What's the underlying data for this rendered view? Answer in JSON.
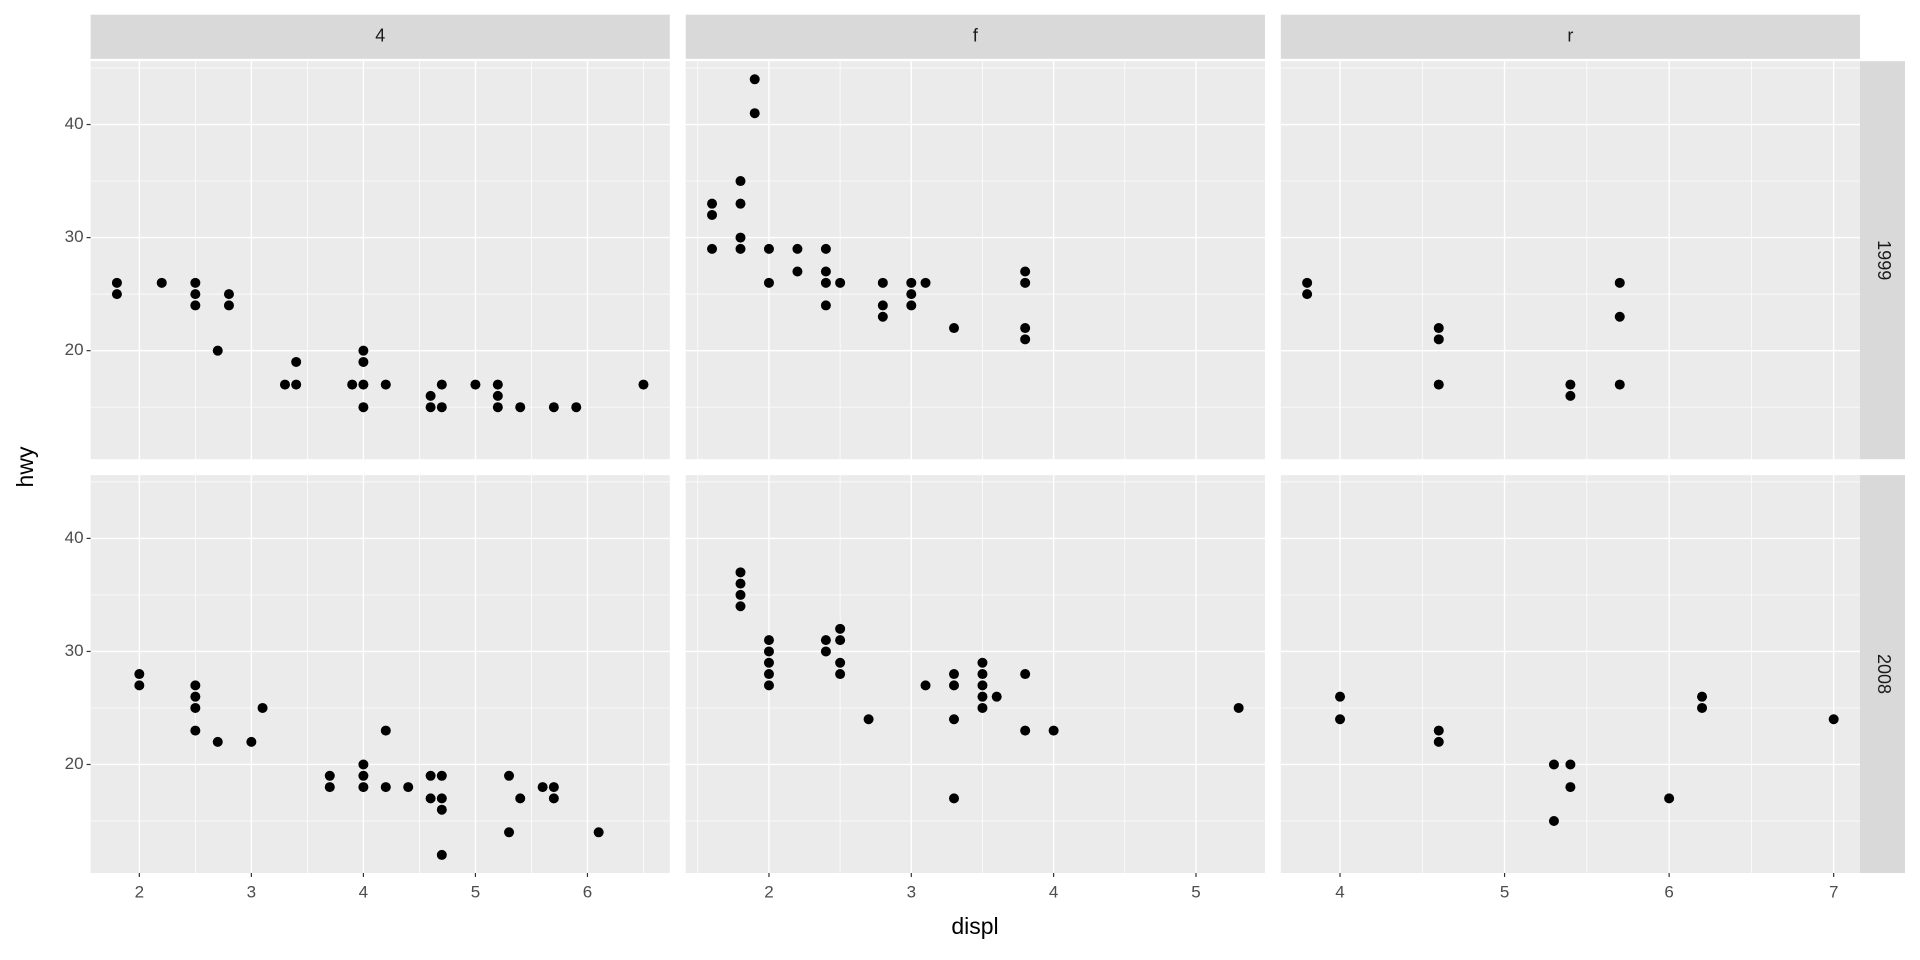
{
  "chart_data": {
    "type": "scatter",
    "x_label": "displ",
    "y_label": "hwy",
    "color": "#000000",
    "grid": true,
    "ylim": [
      10.4,
      45.6
    ],
    "yticks": [
      20,
      30,
      40
    ],
    "columns": [
      {
        "label": "4",
        "xlim": [
          1.565,
          6.735
        ],
        "xticks": [
          2,
          3,
          4,
          5,
          6
        ]
      },
      {
        "label": "f",
        "xlim": [
          1.415,
          5.485
        ],
        "xticks": [
          2,
          3,
          4,
          5
        ]
      },
      {
        "label": "r",
        "xlim": [
          3.64,
          7.16
        ],
        "xticks": [
          4,
          5,
          6,
          7
        ]
      }
    ],
    "rows": [
      "1999",
      "2008"
    ],
    "panels": [
      {
        "x": [
          1.8,
          1.8,
          2.2,
          2.5,
          2.5,
          2.5,
          2.8,
          2.8,
          2.7,
          3.3,
          3.4,
          3.4,
          3.9,
          4,
          4,
          4,
          4,
          4.2,
          4.6,
          4.6,
          4.7,
          4.7,
          5,
          5.2,
          5.2,
          5.2,
          5.4,
          5.7,
          5.9,
          6.5
        ],
        "y": [
          26,
          25,
          26,
          26,
          25,
          24,
          25,
          24,
          20,
          17,
          17,
          19,
          17,
          20,
          19,
          17,
          15,
          17,
          16,
          15,
          17,
          15,
          17,
          17,
          16,
          15,
          15,
          15,
          15,
          17
        ]
      },
      {
        "x": [
          1.6,
          1.6,
          1.6,
          1.8,
          1.8,
          1.8,
          1.8,
          1.9,
          1.9,
          2,
          2,
          2.2,
          2.2,
          2.4,
          2.4,
          2.4,
          2.4,
          2.5,
          2.8,
          2.8,
          2.8,
          3,
          3,
          3,
          3.1,
          3.3,
          3.8,
          3.8,
          3.8,
          3.8
        ],
        "y": [
          33,
          32,
          29,
          35,
          33,
          30,
          29,
          44,
          41,
          29,
          26,
          29,
          27,
          29,
          27,
          26,
          24,
          26,
          26,
          24,
          23,
          26,
          25,
          24,
          26,
          22,
          27,
          26,
          22,
          21
        ]
      },
      {
        "x": [
          3.8,
          3.8,
          4.6,
          4.6,
          4.6,
          5.4,
          5.4,
          5.7,
          5.7,
          5.7
        ],
        "y": [
          26,
          25,
          22,
          21,
          17,
          17,
          16,
          26,
          23,
          17
        ]
      },
      {
        "x": [
          2,
          2,
          2.5,
          2.5,
          2.5,
          2.5,
          2.7,
          3,
          3.1,
          3.7,
          3.7,
          4,
          4,
          4,
          4.2,
          4.2,
          4.4,
          4.6,
          4.6,
          4.7,
          4.7,
          4.7,
          4.7,
          5.3,
          5.3,
          5.4,
          5.6,
          5.7,
          5.7,
          6.1
        ],
        "y": [
          28,
          27,
          27,
          26,
          25,
          23,
          22,
          22,
          25,
          19,
          18,
          20,
          19,
          18,
          23,
          18,
          18,
          19,
          17,
          19,
          17,
          16,
          12,
          19,
          14,
          17,
          18,
          18,
          17,
          14
        ]
      },
      {
        "x": [
          1.8,
          1.8,
          1.8,
          1.8,
          2,
          2,
          2,
          2,
          2,
          2.4,
          2.4,
          2.5,
          2.5,
          2.5,
          2.5,
          2.7,
          3.1,
          3.3,
          3.3,
          3.3,
          3.3,
          3.5,
          3.5,
          3.5,
          3.5,
          3.5,
          3.6,
          3.8,
          3.8,
          4,
          5.3
        ],
        "y": [
          37,
          36,
          35,
          34,
          31,
          30,
          29,
          28,
          27,
          31,
          30,
          32,
          31,
          29,
          28,
          24,
          27,
          28,
          27,
          24,
          17,
          29,
          28,
          27,
          26,
          25,
          26,
          28,
          23,
          23,
          25
        ]
      },
      {
        "x": [
          4,
          4,
          4.6,
          4.6,
          5.3,
          5.3,
          5.4,
          5.4,
          6,
          6.2,
          6.2,
          7
        ],
        "y": [
          26,
          24,
          23,
          22,
          20,
          15,
          20,
          18,
          17,
          26,
          25,
          24
        ]
      }
    ]
  }
}
